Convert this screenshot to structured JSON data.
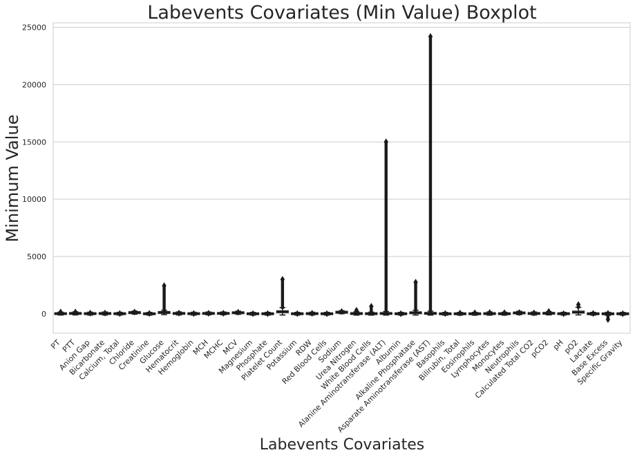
{
  "chart_data": {
    "type": "box",
    "title": "Labevents Covariates (Min Value) Boxplot",
    "xlabel": "Labevents Covariates",
    "ylabel": "Minimum Value",
    "ylim": [
      -1700,
      25400
    ],
    "yticks": [
      0,
      5000,
      10000,
      15000,
      20000,
      25000
    ],
    "grid": "horizontal",
    "categories": [
      "PT",
      "PTT",
      "Anion Gap",
      "Bicarbonate",
      "Calcium, Total",
      "Chloride",
      "Creatinine",
      "Glucose",
      "Hematocrit",
      "Hemoglobin",
      "MCH",
      "MCHC",
      "MCV",
      "Magnesium",
      "Phosphate",
      "Platelet Count",
      "Potassium",
      "RDW",
      "Red Blood Cells",
      "Sodium",
      "Urea Nitrogen",
      "White Blood Cells",
      "Alanine Aminotransferase (ALT)",
      "Albumin",
      "Alkaline Phosphatase",
      "Asparate Aminotransferase (AST)",
      "Basophils",
      "Bilirubin, Total",
      "Eosinophils",
      "Lymphocytes",
      "Monocytes",
      "Neutrophils",
      "Calculated Total CO2",
      "pCO2",
      "pH",
      "pO2",
      "Lactate",
      "Base Excess",
      "Specific Gravity"
    ],
    "boxes": [
      {
        "q1": 11,
        "median": 13,
        "q3": 15,
        "whislo": 8,
        "whishi": 22,
        "fliers_max": 150
      },
      {
        "q1": 26,
        "median": 30,
        "q3": 35,
        "whislo": 18,
        "whishi": 50,
        "fliers_max": 150
      },
      {
        "q1": 11,
        "median": 13,
        "q3": 15,
        "whislo": 5,
        "whishi": 22,
        "fliers_max": 60
      },
      {
        "q1": 21,
        "median": 24,
        "q3": 27,
        "whislo": 10,
        "whishi": 35,
        "fliers_max": 60
      },
      {
        "q1": 7.8,
        "median": 8.3,
        "q3": 8.8,
        "whislo": 6.5,
        "whishi": 10,
        "fliers_max": 20
      },
      {
        "q1": 98,
        "median": 102,
        "q3": 106,
        "whislo": 85,
        "whishi": 118,
        "fliers_max": 150
      },
      {
        "q1": 0.7,
        "median": 0.9,
        "q3": 1.4,
        "whislo": 0.1,
        "whishi": 2.5,
        "fliers_max": 25
      },
      {
        "q1": 95,
        "median": 110,
        "q3": 135,
        "whislo": 40,
        "whishi": 190,
        "fliers_max": 2450
      },
      {
        "q1": 27,
        "median": 30,
        "q3": 34,
        "whislo": 18,
        "whishi": 44,
        "fliers_max": 60
      },
      {
        "q1": 9,
        "median": 10,
        "q3": 11.5,
        "whislo": 5,
        "whishi": 15,
        "fliers_max": 20
      },
      {
        "q1": 28,
        "median": 30,
        "q3": 31,
        "whislo": 24,
        "whishi": 35,
        "fliers_max": 45
      },
      {
        "q1": 32,
        "median": 33,
        "q3": 34,
        "whislo": 29,
        "whishi": 37,
        "fliers_max": 40
      },
      {
        "q1": 86,
        "median": 90,
        "q3": 94,
        "whislo": 75,
        "whishi": 105,
        "fliers_max": 130
      },
      {
        "q1": 1.7,
        "median": 1.9,
        "q3": 2.1,
        "whislo": 1.1,
        "whishi": 2.7,
        "fliers_max": 10
      },
      {
        "q1": 2.6,
        "median": 3.1,
        "q3": 3.7,
        "whislo": 1,
        "whishi": 5.3,
        "fliers_max": 15
      },
      {
        "q1": 120,
        "median": 180,
        "q3": 240,
        "whislo": 10,
        "whishi": 420,
        "fliers_max": 3000
      },
      {
        "q1": 3.6,
        "median": 3.9,
        "q3": 4.2,
        "whislo": 2.8,
        "whishi": 5,
        "fliers_max": 10
      },
      {
        "q1": 13.5,
        "median": 14.5,
        "q3": 16,
        "whislo": 11,
        "whishi": 19.5,
        "fliers_max": 35
      },
      {
        "q1": 3,
        "median": 3.4,
        "q3": 3.9,
        "whislo": 2,
        "whishi": 5.2,
        "fliers_max": 8
      },
      {
        "q1": 134,
        "median": 137,
        "q3": 140,
        "whislo": 125,
        "whishi": 149,
        "fliers_max": 190
      },
      {
        "q1": 12,
        "median": 18,
        "q3": 30,
        "whislo": 2,
        "whishi": 60,
        "fliers_max": 300
      },
      {
        "q1": 6,
        "median": 8.5,
        "q3": 12,
        "whislo": 0.1,
        "whishi": 21,
        "fliers_max": 650
      },
      {
        "q1": 14,
        "median": 22,
        "q3": 40,
        "whislo": 2,
        "whishi": 80,
        "fliers_max": 15000
      },
      {
        "q1": 2.6,
        "median": 3.1,
        "q3": 3.6,
        "whislo": 1.2,
        "whishi": 5,
        "fliers_max": 6
      },
      {
        "q1": 60,
        "median": 80,
        "q3": 115,
        "whislo": 10,
        "whishi": 190,
        "fliers_max": 2750
      },
      {
        "q1": 18,
        "median": 28,
        "q3": 55,
        "whislo": 2,
        "whishi": 110,
        "fliers_max": 24200
      },
      {
        "q1": 0.1,
        "median": 0.2,
        "q3": 0.4,
        "whislo": 0,
        "whishi": 1,
        "fliers_max": 20
      },
      {
        "q1": 0.4,
        "median": 0.6,
        "q3": 1.1,
        "whislo": 0.1,
        "whishi": 2,
        "fliers_max": 60
      },
      {
        "q1": 0.5,
        "median": 1.2,
        "q3": 2.5,
        "whislo": 0,
        "whishi": 5,
        "fliers_max": 80
      },
      {
        "q1": 8,
        "median": 14,
        "q3": 22,
        "whislo": 0.5,
        "whishi": 43,
        "fliers_max": 100
      },
      {
        "q1": 4,
        "median": 6,
        "q3": 8,
        "whislo": 0.5,
        "whishi": 14,
        "fliers_max": 90
      },
      {
        "q1": 65,
        "median": 75,
        "q3": 82,
        "whislo": 40,
        "whishi": 98,
        "fliers_max": 100
      },
      {
        "q1": 22,
        "median": 25,
        "q3": 28,
        "whislo": 12,
        "whishi": 38,
        "fliers_max": 70
      },
      {
        "q1": 35,
        "median": 40,
        "q3": 46,
        "whislo": 20,
        "whishi": 62,
        "fliers_max": 200
      },
      {
        "q1": 7.3,
        "median": 7.38,
        "q3": 7.43,
        "whislo": 7.1,
        "whishi": 7.6,
        "fliers_max": 8
      },
      {
        "q1": 80,
        "median": 120,
        "q3": 220,
        "whislo": 20,
        "whishi": 450,
        "fliers_max": 800
      },
      {
        "q1": 1.2,
        "median": 1.7,
        "q3": 2.6,
        "whislo": 0.3,
        "whishi": 4.5,
        "fliers_max": 30
      },
      {
        "q1": -4,
        "median": -1,
        "q3": 2,
        "whislo": -12,
        "whishi": 10,
        "fliers_min": -500,
        "fliers_max": 30
      },
      {
        "q1": 1.01,
        "median": 1.015,
        "q3": 1.02,
        "whislo": 1.002,
        "whishi": 1.035,
        "fliers_max": 2
      }
    ]
  }
}
